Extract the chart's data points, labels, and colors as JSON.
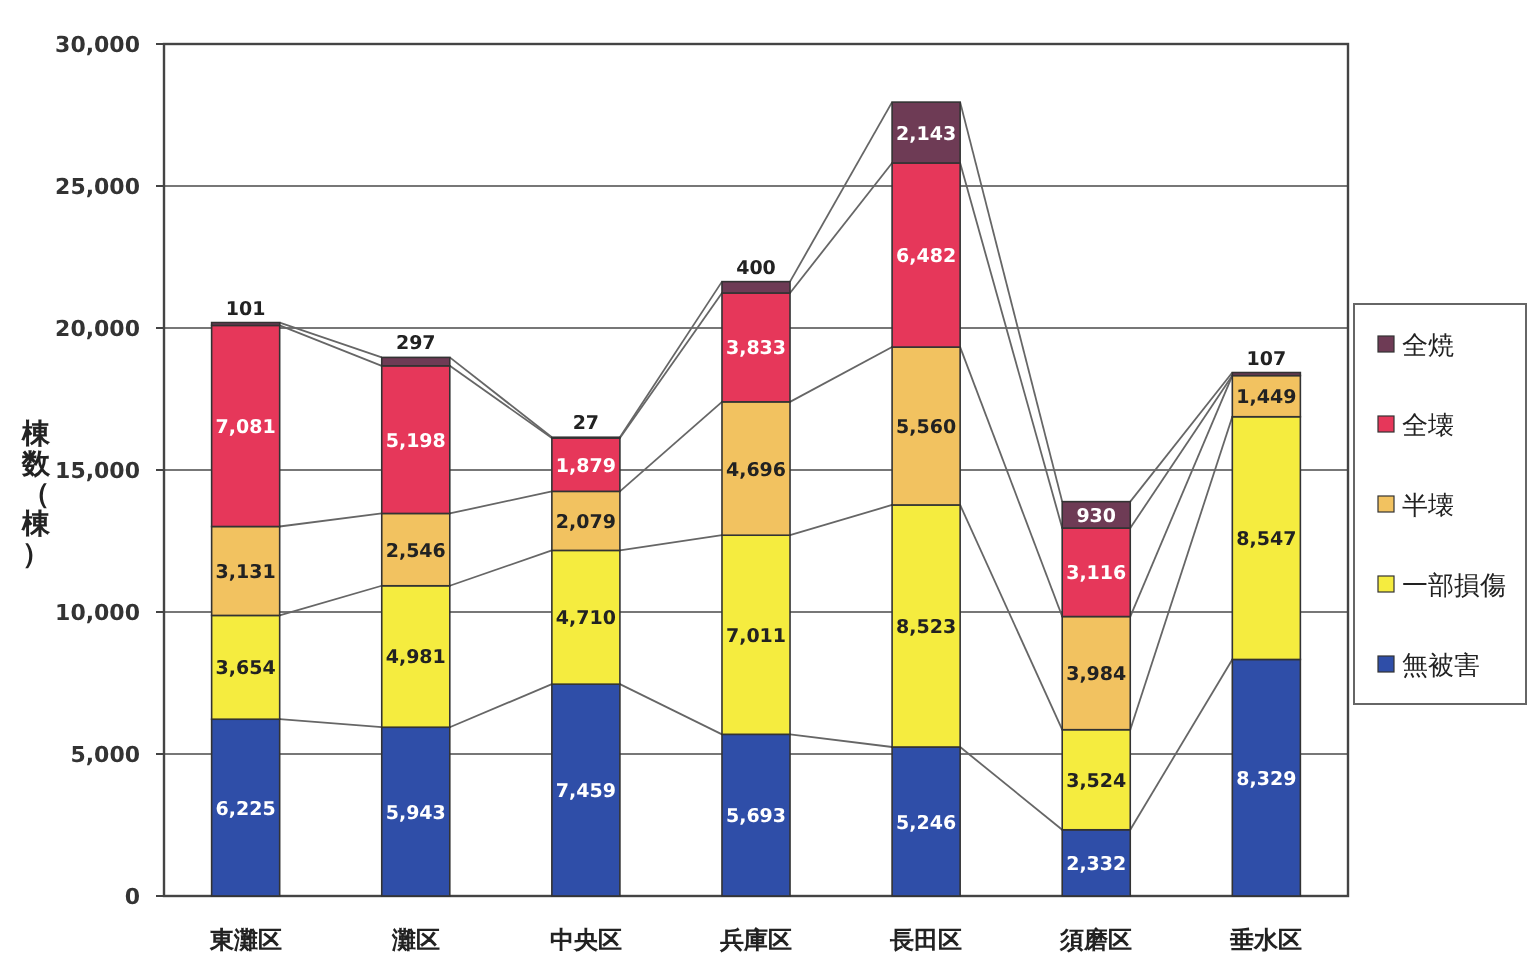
{
  "chart_data": {
    "type": "bar",
    "stacked": true,
    "ylabel": "棟数（棟）",
    "categories": [
      "東灘区",
      "灘区",
      "中央区",
      "兵庫区",
      "長田区",
      "須磨区",
      "垂水区"
    ],
    "series": [
      {
        "name": "無被害",
        "color": "#2f4ea8",
        "values": [
          6225,
          5943,
          7459,
          5693,
          5246,
          2332,
          8329
        ],
        "value_labels": [
          "6,225",
          "5,943",
          "7,459",
          "5,693",
          "5,246",
          "2,332",
          "8,329"
        ]
      },
      {
        "name": "一部損傷",
        "color": "#f5ec3f",
        "values": [
          3654,
          4981,
          4710,
          7011,
          8523,
          3524,
          8547
        ],
        "value_labels": [
          "3,654",
          "4,981",
          "4,710",
          "7,011",
          "8,523",
          "3,524",
          "8,547"
        ]
      },
      {
        "name": "半壊",
        "color": "#f2c260",
        "values": [
          3131,
          2546,
          2079,
          4696,
          5560,
          3984,
          1449
        ],
        "value_labels": [
          "3,131",
          "2,546",
          "2,079",
          "4,696",
          "5,560",
          "3,984",
          "1,449"
        ]
      },
      {
        "name": "全壊",
        "color": "#e6375a",
        "values": [
          7081,
          5198,
          1879,
          3833,
          6482,
          3116,
          null
        ],
        "value_labels": [
          "7,081",
          "5,198",
          "1,879",
          "3,833",
          "6,482",
          "3,116",
          null
        ]
      },
      {
        "name": "全焼",
        "color": "#6e3b55",
        "values": [
          101,
          297,
          27,
          400,
          2143,
          930,
          107
        ],
        "value_labels": [
          "101",
          "297",
          "27",
          "400",
          "2,143",
          "930",
          "107"
        ]
      }
    ],
    "ylim": [
      0,
      30000
    ],
    "yticks": [
      0,
      {
        "value": 5000,
        "label": "5,000"
      },
      {
        "value": 10000,
        "label": "10,000"
      },
      {
        "value": 15000,
        "label": "15,000"
      },
      {
        "value": 20000,
        "label": "20,000"
      },
      {
        "value": 25000,
        "label": "25,000"
      },
      {
        "value": 30000,
        "label": "30,000"
      }
    ],
    "grid": "y",
    "legend": "right"
  }
}
